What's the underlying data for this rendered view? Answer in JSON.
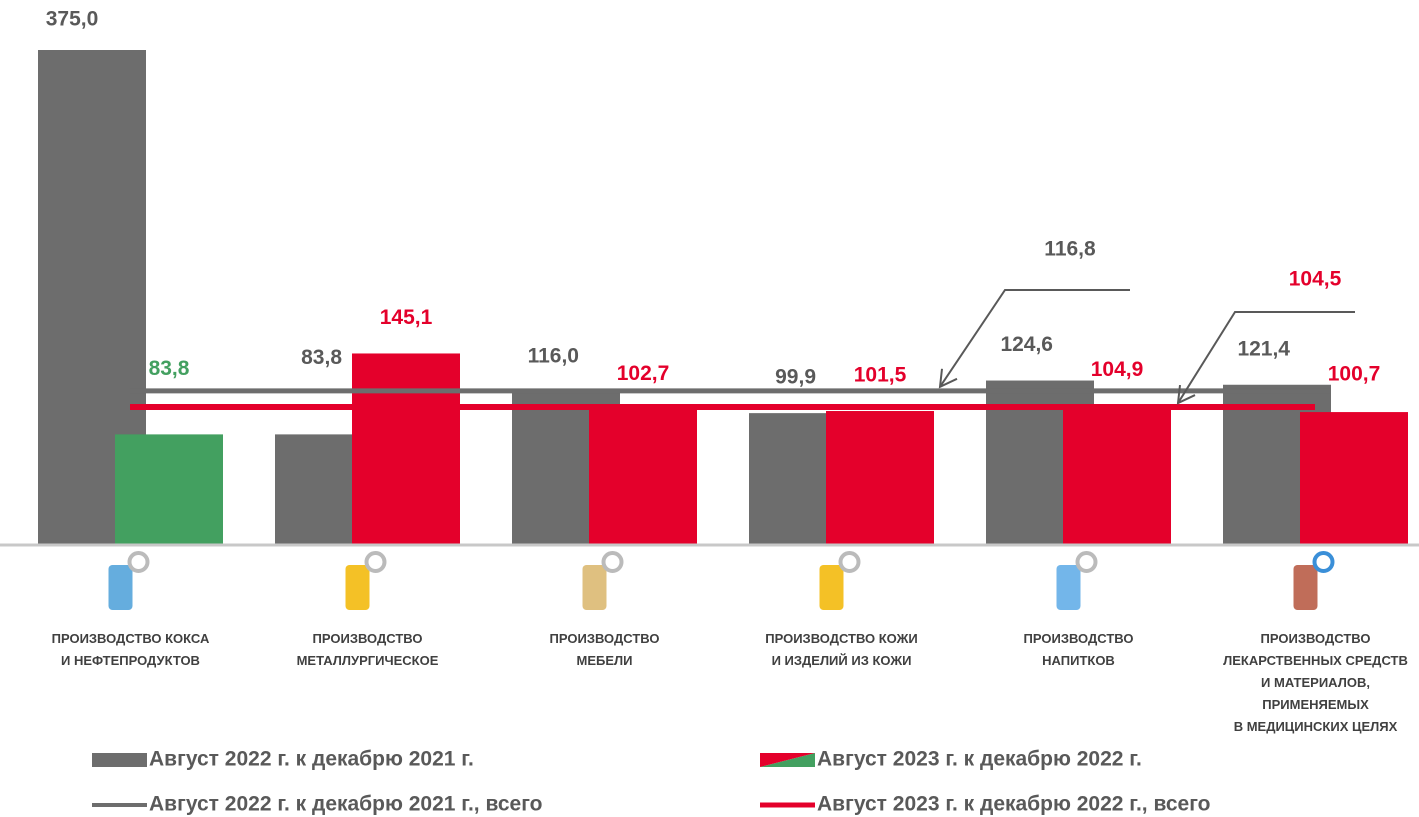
{
  "chart_data": {
    "type": "bar",
    "categories": [
      [
        "ПРОИЗВОДСТВО КОКСА",
        "И НЕФТЕПРОДУКТОВ"
      ],
      [
        "ПРОИЗВОДСТВО",
        "МЕТАЛЛУРГИЧЕСКОЕ"
      ],
      [
        "ПРОИЗВОДСТВО",
        "МЕБЕЛИ"
      ],
      [
        "ПРОИЗВОДСТВО КОЖИ",
        "И ИЗДЕЛИЙ ИЗ КОЖИ"
      ],
      [
        "ПРОИЗВОДСТВО",
        "НАПИТКОВ"
      ],
      [
        "ПРОИЗВОДСТВО",
        "ЛЕКАРСТВЕННЫХ СРЕДСТВ",
        "И МАТЕРИАЛОВ,",
        "ПРИМЕНЯЕМЫХ",
        "В МЕДИЦИНСКИХ ЦЕЛЯХ"
      ]
    ],
    "series": [
      {
        "name": "Август 2022 г. к декабрю 2021 г.",
        "color": "#6d6d6d",
        "label_color": "#595959",
        "values": [
          375.0,
          83.8,
          116.0,
          99.9,
          124.6,
          121.4
        ],
        "value_labels": [
          "375,0",
          "83,8",
          "116,0",
          "99,9",
          "124,6",
          "121,4"
        ]
      },
      {
        "name": "Август 2023 г. к декабрю 2022 г.",
        "color": "#e4002b",
        "colors": [
          "#43a060",
          "#e4002b",
          "#e4002b",
          "#e4002b",
          "#e4002b",
          "#e4002b"
        ],
        "values": [
          83.8,
          145.1,
          102.7,
          101.5,
          104.9,
          100.7
        ],
        "value_labels": [
          "83,8",
          "145,1",
          "102,7",
          "101,5",
          "104,9",
          "100,7"
        ]
      }
    ],
    "reference_lines": [
      {
        "name": "Август 2022 г. к декабрю 2021 г., всего",
        "color": "#6d6d6d",
        "value": 116.8,
        "value_label": "116,8"
      },
      {
        "name": "Август 2023 г. к декабрю 2022 г., всего",
        "color": "#e4002b",
        "value": 104.5,
        "value_label": "104,5"
      }
    ],
    "ylim": [
      0,
      375
    ]
  }
}
